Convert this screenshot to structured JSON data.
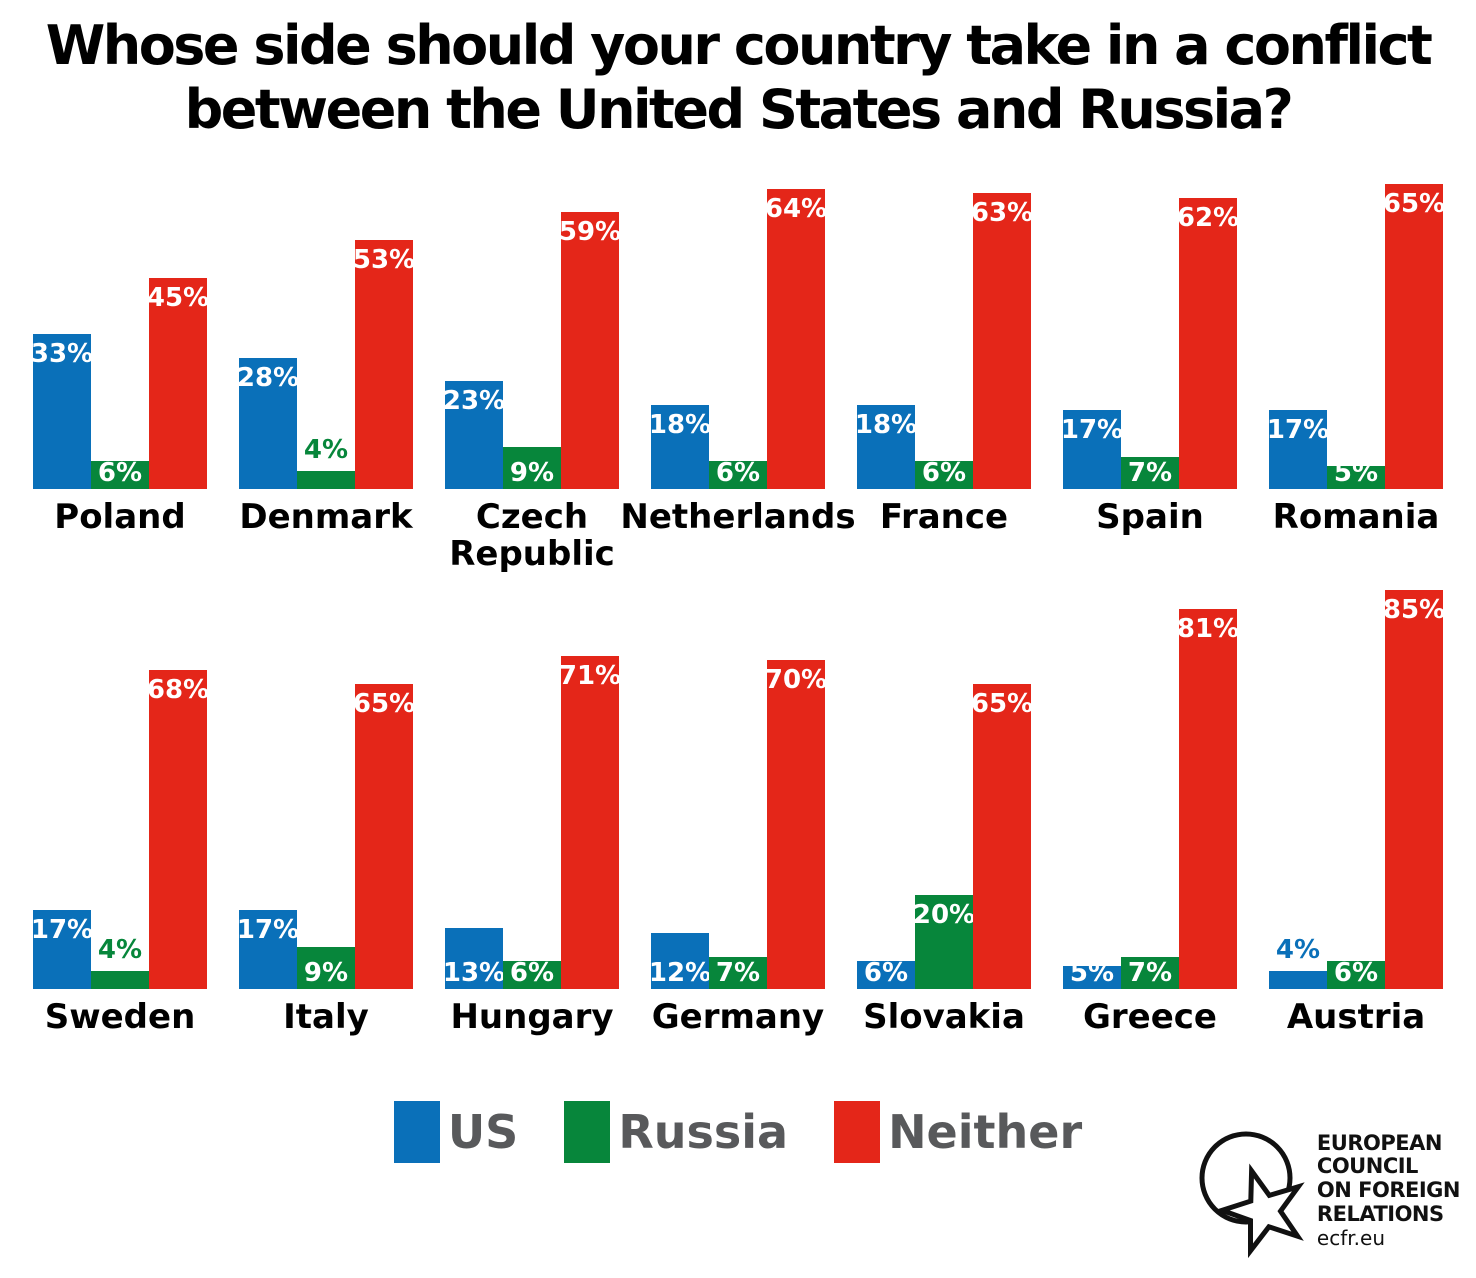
{
  "title": {
    "line1": "Whose side should your country take in a conflict",
    "line2": "between the United States and Russia?"
  },
  "chart_data": {
    "type": "bar",
    "title": "Whose side should your country take in a conflict between the United States and Russia?",
    "unit": "percent",
    "series_names": [
      "US",
      "Russia",
      "Neither"
    ],
    "colors": {
      "US": "#0A70B9",
      "Russia": "#07863B",
      "Neither": "#E42619"
    },
    "ylim": [
      0,
      100
    ],
    "grid": false,
    "legend_position": "bottom",
    "value_label_format": "{value}%",
    "rows": [
      [
        {
          "country": "Poland",
          "US": 33,
          "Russia": 6,
          "Neither": 45
        },
        {
          "country": "Denmark",
          "US": 28,
          "Russia": 4,
          "Neither": 53
        },
        {
          "country": "Czech Republic",
          "US": 23,
          "Russia": 9,
          "Neither": 59
        },
        {
          "country": "Netherlands",
          "US": 18,
          "Russia": 6,
          "Neither": 64
        },
        {
          "country": "France",
          "US": 18,
          "Russia": 6,
          "Neither": 63
        },
        {
          "country": "Spain",
          "US": 17,
          "Russia": 7,
          "Neither": 62
        },
        {
          "country": "Romania",
          "US": 17,
          "Russia": 5,
          "Neither": 65
        }
      ],
      [
        {
          "country": "Sweden",
          "US": 17,
          "Russia": 4,
          "Neither": 68
        },
        {
          "country": "Italy",
          "US": 17,
          "Russia": 9,
          "Neither": 65
        },
        {
          "country": "Hungary",
          "US": 13,
          "Russia": 6,
          "Neither": 71
        },
        {
          "country": "Germany",
          "US": 12,
          "Russia": 7,
          "Neither": 70
        },
        {
          "country": "Slovakia",
          "US": 6,
          "Russia": 20,
          "Neither": 65
        },
        {
          "country": "Greece",
          "US": 5,
          "Russia": 7,
          "Neither": 81
        },
        {
          "country": "Austria",
          "US": 4,
          "Russia": 6,
          "Neither": 85
        }
      ]
    ]
  },
  "legend": {
    "text_color": "#58595B"
  },
  "logo": {
    "lines": [
      "EUROPEAN",
      "COUNCIL",
      "ON FOREIGN",
      "RELATIONS"
    ],
    "url_text": "ecfr.eu"
  }
}
